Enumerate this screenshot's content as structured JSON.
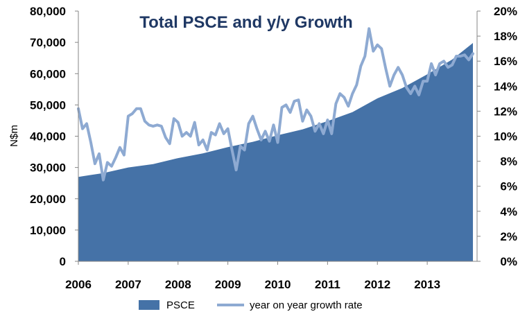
{
  "chart_data": {
    "type": "area",
    "title": "Total PSCE and y/y Growth",
    "xlabel": "",
    "ylabel": "N$m",
    "y2label": "",
    "x_ticks": [
      "2006",
      "2007",
      "2008",
      "2009",
      "2010",
      "2011",
      "2012",
      "2013"
    ],
    "y_ticks": [
      "0",
      "10,000",
      "20,000",
      "30,000",
      "40,000",
      "50,000",
      "60,000",
      "70,000",
      "80,000"
    ],
    "y2_ticks": [
      "0%",
      "2%",
      "4%",
      "6%",
      "8%",
      "10%",
      "12%",
      "14%",
      "16%",
      "18%",
      "20%"
    ],
    "ylim": [
      0,
      80000
    ],
    "y2lim": [
      0,
      20
    ],
    "xlim": [
      2006.0,
      2014.0
    ],
    "grid": false,
    "legend": "bottom",
    "colors": {
      "psce": "#4572a7",
      "growth": "#8eaad2",
      "title": "#1f3864"
    },
    "series": [
      {
        "name": "PSCE",
        "kind": "area",
        "axis": "left",
        "x": [
          2006.0,
          2006.5,
          2007.0,
          2007.5,
          2008.0,
          2008.5,
          2009.0,
          2009.5,
          2010.0,
          2010.5,
          2011.0,
          2011.5,
          2012.0,
          2012.5,
          2013.0,
          2013.5,
          2013.917
        ],
        "values": [
          27000,
          28200,
          30000,
          31100,
          33000,
          34500,
          36500,
          38200,
          40300,
          42200,
          44800,
          47700,
          52100,
          55400,
          59800,
          64500,
          69800
        ]
      },
      {
        "name": "year on year growth rate",
        "kind": "line",
        "axis": "right",
        "x": [
          2006.0,
          2006.083,
          2006.167,
          2006.25,
          2006.333,
          2006.417,
          2006.5,
          2006.583,
          2006.667,
          2006.75,
          2006.833,
          2006.917,
          2007.0,
          2007.083,
          2007.167,
          2007.25,
          2007.333,
          2007.417,
          2007.5,
          2007.583,
          2007.667,
          2007.75,
          2007.833,
          2007.917,
          2008.0,
          2008.083,
          2008.167,
          2008.25,
          2008.333,
          2008.417,
          2008.5,
          2008.583,
          2008.667,
          2008.75,
          2008.833,
          2008.917,
          2009.0,
          2009.083,
          2009.167,
          2009.25,
          2009.333,
          2009.417,
          2009.5,
          2009.583,
          2009.667,
          2009.75,
          2009.833,
          2009.917,
          2010.0,
          2010.083,
          2010.167,
          2010.25,
          2010.333,
          2010.417,
          2010.5,
          2010.583,
          2010.667,
          2010.75,
          2010.833,
          2010.917,
          2011.0,
          2011.083,
          2011.167,
          2011.25,
          2011.333,
          2011.417,
          2011.5,
          2011.583,
          2011.667,
          2011.75,
          2011.833,
          2011.917,
          2012.0,
          2012.083,
          2012.167,
          2012.25,
          2012.333,
          2012.417,
          2012.5,
          2012.583,
          2012.667,
          2012.75,
          2012.833,
          2012.917,
          2013.0,
          2013.083,
          2013.167,
          2013.25,
          2013.333,
          2013.417,
          2013.5,
          2013.583,
          2013.667,
          2013.75,
          2013.833,
          2013.917
        ],
        "values": [
          12.2,
          10.6,
          11.0,
          9.5,
          7.8,
          8.6,
          6.5,
          7.9,
          7.6,
          8.3,
          9.1,
          8.5,
          11.6,
          11.8,
          12.2,
          12.2,
          11.2,
          10.9,
          10.8,
          10.9,
          10.8,
          9.9,
          9.4,
          11.4,
          11.1,
          10.0,
          10.3,
          10.0,
          11.1,
          9.3,
          9.7,
          8.9,
          10.3,
          10.1,
          11.0,
          10.2,
          10.6,
          8.9,
          7.3,
          9.2,
          8.9,
          11.0,
          11.6,
          10.6,
          9.7,
          10.4,
          9.6,
          10.9,
          9.5,
          12.3,
          12.5,
          11.9,
          12.8,
          12.9,
          11.2,
          12.1,
          11.6,
          10.4,
          11.0,
          10.2,
          11.3,
          10.2,
          12.6,
          13.4,
          13.1,
          12.4,
          13.4,
          14.1,
          15.6,
          16.4,
          18.6,
          16.8,
          17.3,
          17.0,
          15.4,
          14.0,
          14.9,
          15.5,
          14.9,
          13.9,
          13.4,
          14.0,
          13.3,
          14.4,
          14.4,
          15.8,
          14.9,
          15.8,
          16.0,
          15.5,
          15.7,
          16.4,
          16.4,
          16.5,
          16.1,
          16.6
        ]
      }
    ]
  }
}
